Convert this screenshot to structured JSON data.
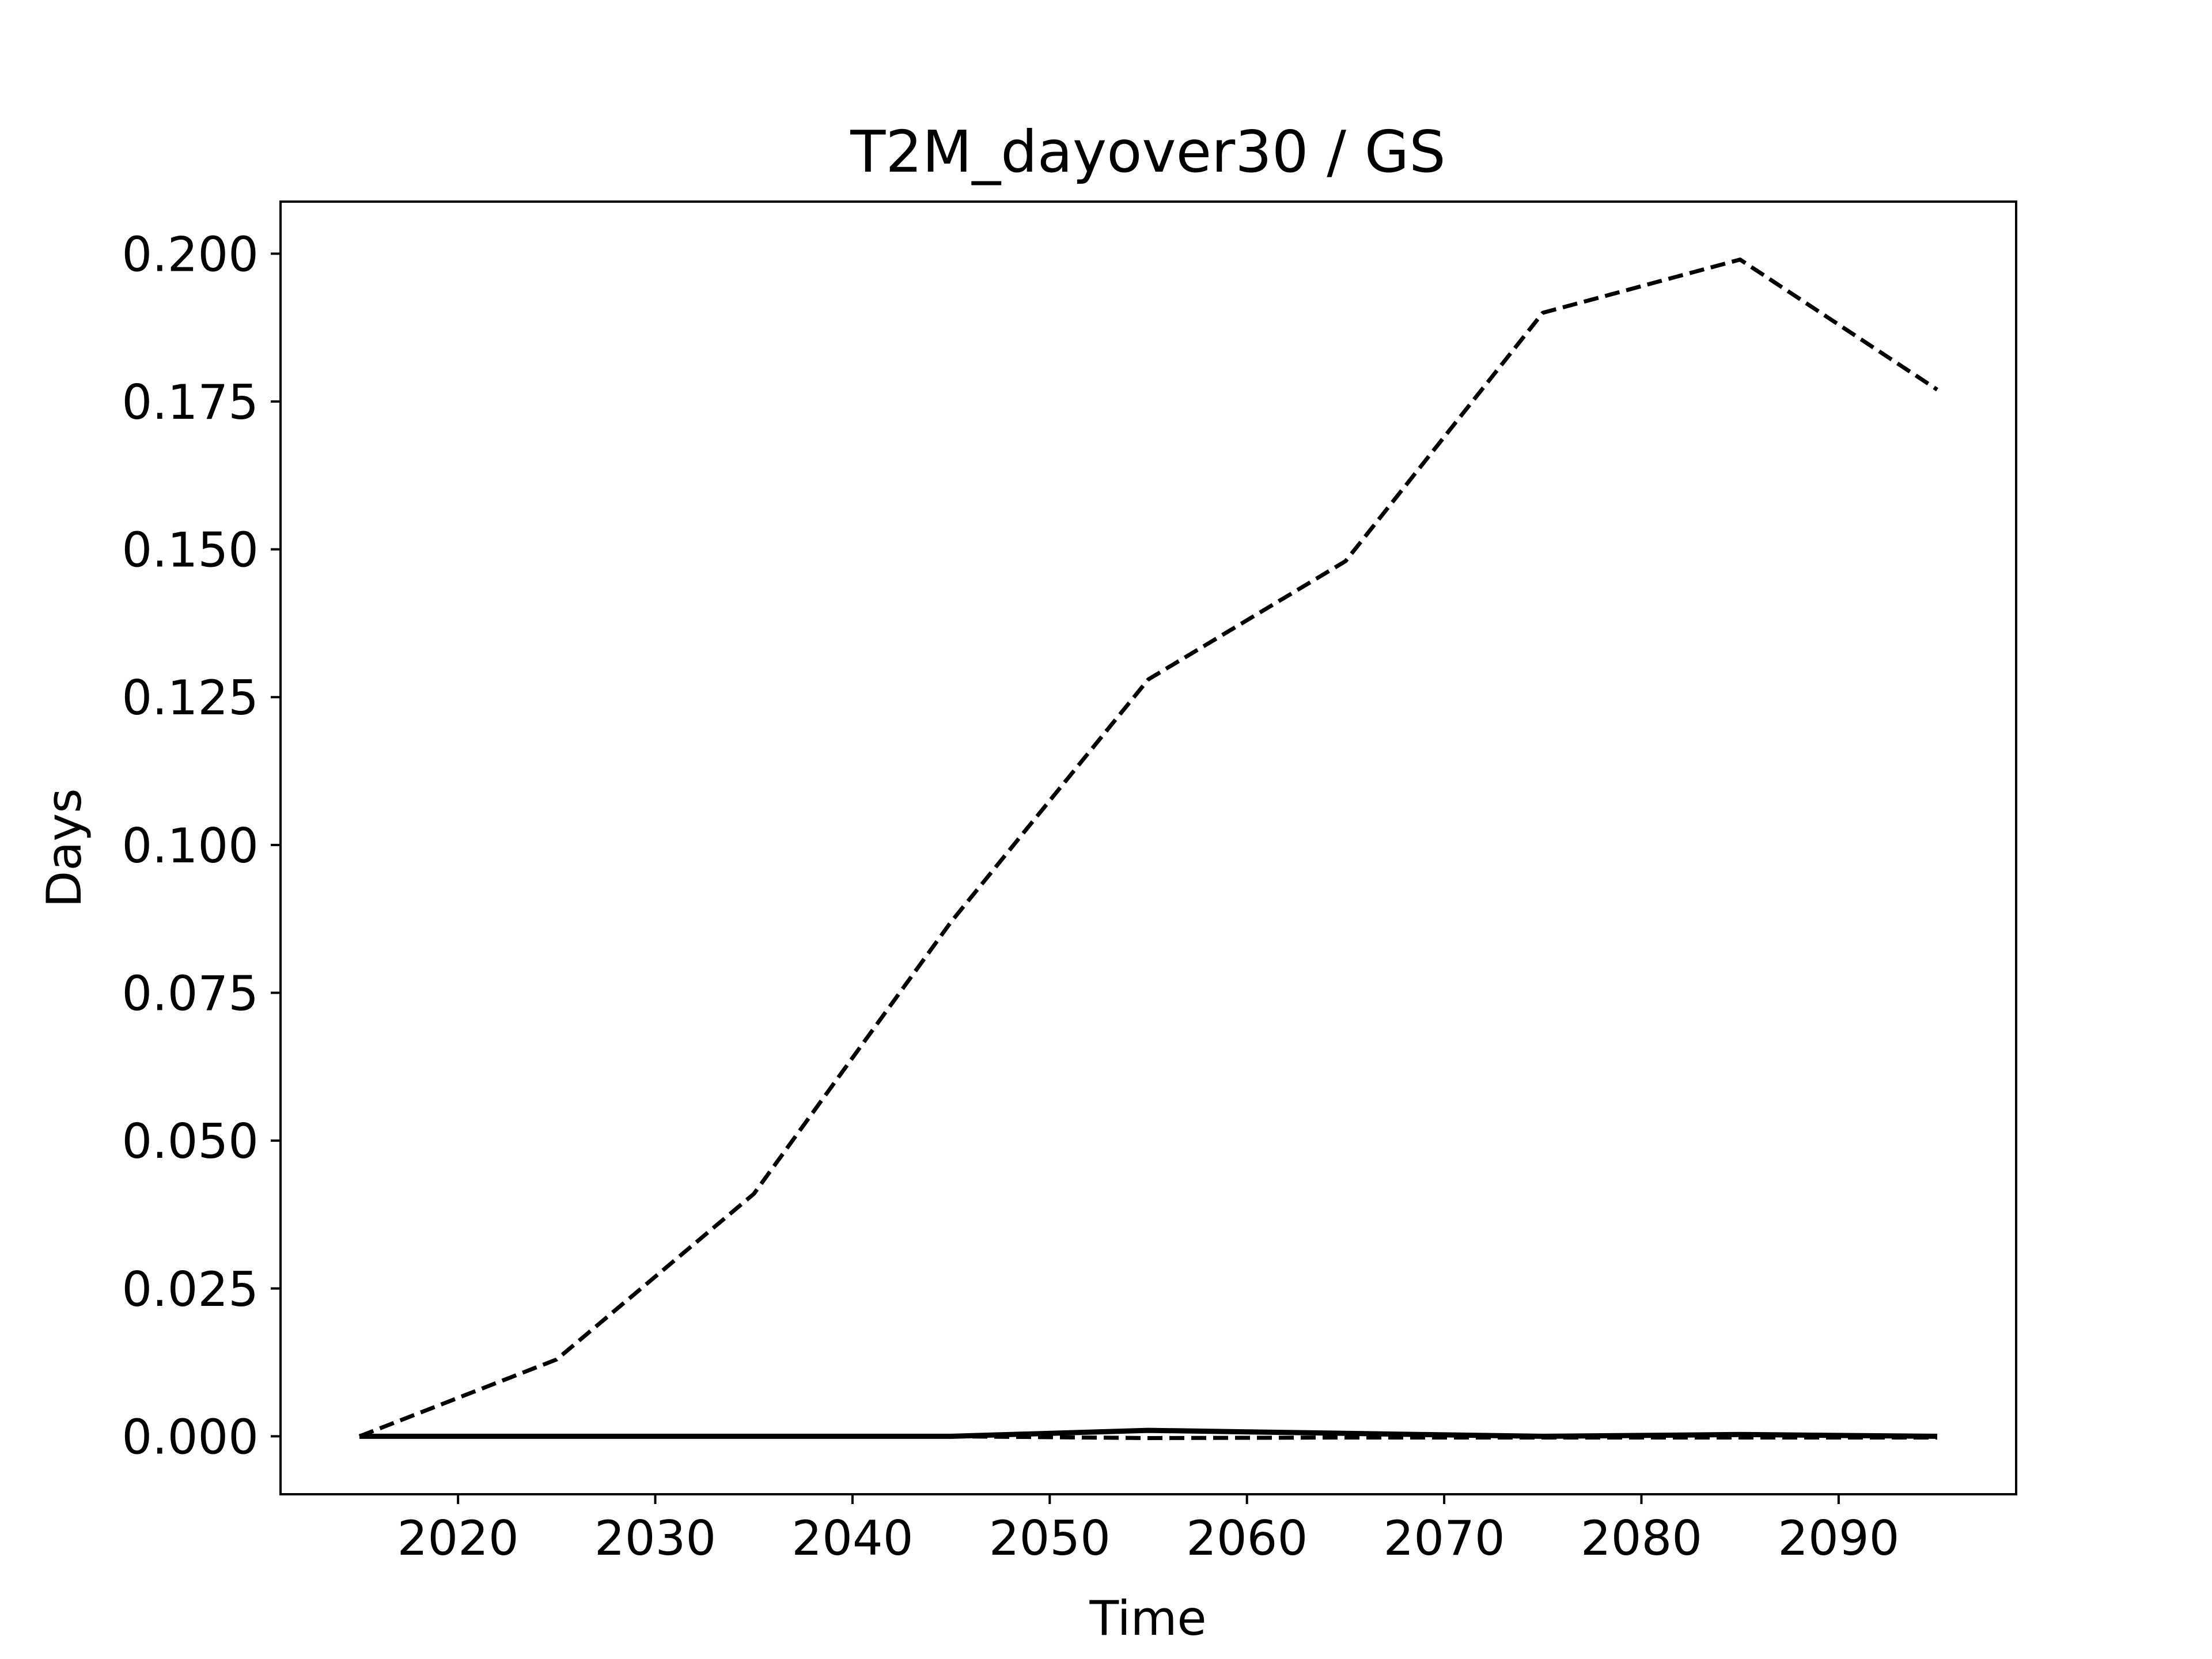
{
  "chart_data": {
    "type": "line",
    "title": "T2M_dayover30 / GS",
    "xlabel": "Time",
    "ylabel": "Days",
    "xlim": [
      2011,
      2099
    ],
    "ylim": [
      -0.0098,
      0.2088
    ],
    "xticks": [
      2020,
      2030,
      2040,
      2050,
      2060,
      2070,
      2080,
      2090
    ],
    "yticks": [
      0.0,
      0.025,
      0.05,
      0.075,
      0.1,
      0.125,
      0.15,
      0.175,
      0.2
    ],
    "ytick_labels": [
      "0.000",
      "0.025",
      "0.050",
      "0.075",
      "0.100",
      "0.125",
      "0.150",
      "0.175",
      "0.200"
    ],
    "xtick_labels": [
      "2020",
      "2030",
      "2040",
      "2050",
      "2060",
      "2070",
      "2080",
      "2090"
    ],
    "grid": false,
    "legend": false,
    "series": [
      {
        "style": "dashed",
        "color": "#000000",
        "x": [
          2015,
          2025,
          2035,
          2045,
          2055,
          2065,
          2075,
          2085,
          2095
        ],
        "y": [
          0.0,
          0.013,
          0.041,
          0.087,
          0.128,
          0.148,
          0.19,
          0.199,
          0.177
        ]
      },
      {
        "style": "solid",
        "color": "#000000",
        "x": [
          2015,
          2025,
          2035,
          2045,
          2055,
          2065,
          2075,
          2085,
          2095
        ],
        "y": [
          0.0,
          0.0,
          0.0,
          0.0,
          0.001,
          0.0005,
          0.0,
          0.0003,
          0.0
        ]
      },
      {
        "style": "dashed",
        "color": "#000000",
        "x": [
          2015,
          2025,
          2035,
          2045,
          2055,
          2065,
          2075,
          2085,
          2095
        ],
        "y": [
          0.0,
          0.0,
          0.0,
          0.0,
          -0.0003,
          -0.0002,
          -0.0002,
          -0.0002,
          -0.0002
        ]
      }
    ]
  }
}
